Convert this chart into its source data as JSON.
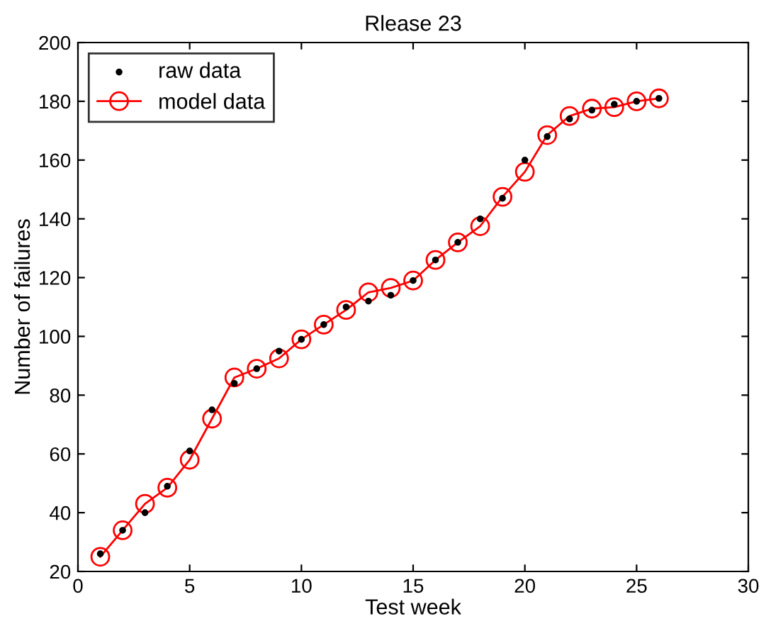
{
  "chart_data": {
    "type": "line",
    "title": "Rlease 23",
    "xlabel": "Test week",
    "ylabel": "Number of failures",
    "x": [
      1,
      2,
      3,
      4,
      5,
      6,
      7,
      8,
      9,
      10,
      11,
      12,
      13,
      14,
      15,
      16,
      17,
      18,
      19,
      20,
      21,
      22,
      23,
      24,
      25,
      26
    ],
    "series": [
      {
        "name": "raw data",
        "type": "scatter",
        "color": "#000000",
        "marker": "circle",
        "values": [
          26,
          34,
          40,
          49,
          61,
          75,
          84,
          89,
          95,
          99,
          104,
          110,
          112,
          114,
          119,
          126,
          132,
          140,
          147,
          160,
          168,
          174,
          177,
          179,
          180,
          181
        ]
      },
      {
        "name": "model data",
        "color": "#ff0000",
        "marker": "circle",
        "line_style": "solid",
        "values": [
          25,
          34,
          43,
          48.5,
          58,
          72,
          86,
          89,
          92.5,
          99,
          104,
          109,
          115,
          116.5,
          119,
          126,
          132,
          137.5,
          147.5,
          156,
          168.5,
          175,
          177.5,
          178,
          180,
          181
        ]
      }
    ],
    "xlim": [
      0,
      30
    ],
    "xticks": [
      0,
      5,
      10,
      15,
      20,
      25,
      30
    ],
    "ylim": [
      20,
      200
    ],
    "yticks": [
      20,
      40,
      60,
      80,
      100,
      120,
      140,
      160,
      180,
      200
    ],
    "grid": false,
    "legend": "top left"
  }
}
